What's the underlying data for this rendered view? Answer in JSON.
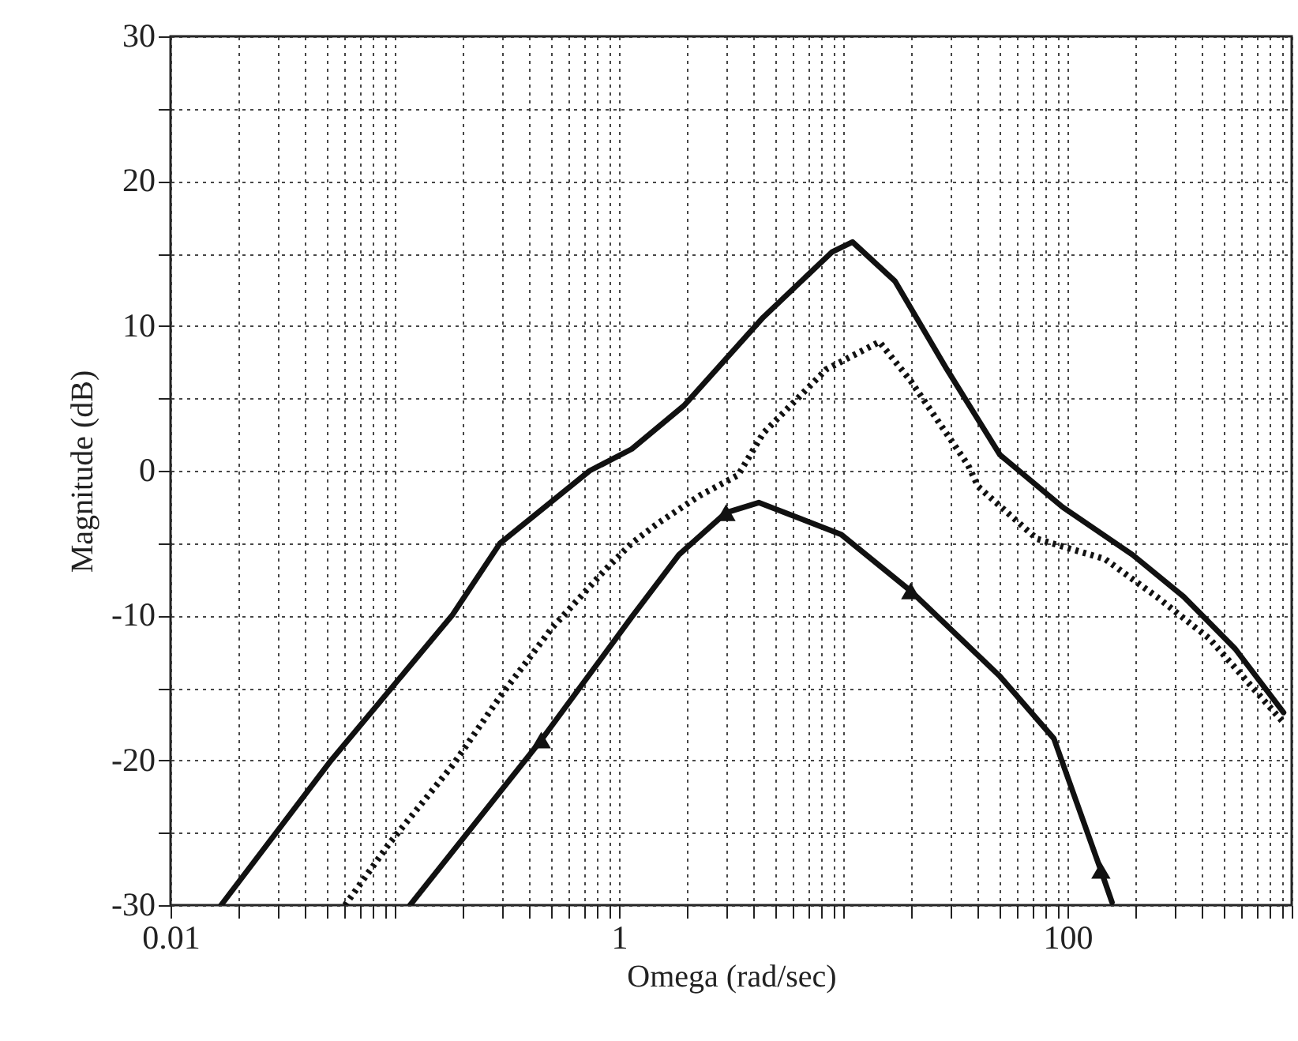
{
  "chart_data": {
    "type": "line",
    "xlabel": "Omega (rad/sec)",
    "ylabel": "Magnitude (dB)",
    "log": "x",
    "grid": true,
    "xlim": [
      0.01,
      1000
    ],
    "ylim": [
      -30,
      30
    ],
    "xticks": [
      0.01,
      {
        "value": 0.02,
        "label": null
      },
      {
        "value": 0.03,
        "label": null
      },
      {
        "value": 0.04,
        "label": null
      },
      {
        "value": 0.05,
        "label": null
      },
      {
        "value": 0.06,
        "label": null
      },
      {
        "value": 0.07,
        "label": null
      },
      {
        "value": 0.08,
        "label": null
      },
      {
        "value": 0.09,
        "label": null
      },
      {
        "value": 0.1,
        "label": null
      },
      {
        "value": 0.2,
        "label": null
      },
      {
        "value": 0.3,
        "label": null
      },
      {
        "value": 0.4,
        "label": null
      },
      {
        "value": 0.5,
        "label": null
      },
      {
        "value": 0.6,
        "label": null
      },
      {
        "value": 0.7,
        "label": null
      },
      {
        "value": 0.8,
        "label": null
      },
      {
        "value": 0.9,
        "label": null
      },
      1,
      {
        "value": 2,
        "label": null
      },
      {
        "value": 3,
        "label": null
      },
      {
        "value": 4,
        "label": null
      },
      {
        "value": 5,
        "label": null
      },
      {
        "value": 6,
        "label": null
      },
      {
        "value": 7,
        "label": null
      },
      {
        "value": 8,
        "label": null
      },
      {
        "value": 9,
        "label": null
      },
      {
        "value": 10,
        "label": null
      },
      {
        "value": 20,
        "label": null
      },
      {
        "value": 30,
        "label": null
      },
      {
        "value": 40,
        "label": null
      },
      {
        "value": 50,
        "label": null
      },
      {
        "value": 60,
        "label": null
      },
      {
        "value": 70,
        "label": null
      },
      {
        "value": 80,
        "label": null
      },
      {
        "value": 90,
        "label": null
      },
      100,
      {
        "value": 200,
        "label": null
      },
      {
        "value": 300,
        "label": null
      },
      {
        "value": 400,
        "label": null
      },
      {
        "value": 500,
        "label": null
      },
      {
        "value": 600,
        "label": null
      },
      {
        "value": 700,
        "label": null
      },
      {
        "value": 800,
        "label": null
      },
      {
        "value": 900,
        "label": null
      },
      {
        "value": 1000,
        "label": null
      }
    ],
    "yticks": [
      -30,
      {
        "value": -25,
        "label": null
      },
      -20,
      {
        "value": -15,
        "label": null
      },
      -10,
      {
        "value": -5,
        "label": null
      },
      0,
      {
        "value": 5,
        "label": null
      },
      10,
      {
        "value": 15,
        "label": null
      },
      20,
      {
        "value": 25,
        "label": null
      },
      30
    ],
    "series": [
      {
        "color": "#111111",
        "line_style": "solid",
        "x": [
          0.0168,
          0.052,
          0.18,
          0.295,
          0.74,
          1.14,
          1.95,
          4.4,
          8.9,
          11,
          17,
          29,
          50,
          95,
          195,
          330,
          560,
          920
        ],
        "values": [
          -30,
          -20,
          -10,
          -5,
          0,
          1.5,
          4.5,
          10.6,
          15.1,
          15.8,
          13.1,
          7,
          1.1,
          -2.5,
          -5.8,
          -8.7,
          -12.3,
          -16.7
        ]
      },
      {
        "color": "#111111",
        "line_style": "dotted",
        "x": [
          0.06,
          0.095,
          0.182,
          0.295,
          0.5,
          0.86,
          1.14,
          1.5,
          2.3,
          3.4,
          4.4,
          8.4,
          14.5,
          20,
          36,
          40,
          73,
          147,
          250,
          430,
          920
        ],
        "values": [
          -30,
          -25.7,
          -20.3,
          -15.6,
          -10.9,
          -6.9,
          -5,
          -3.6,
          -1.7,
          -0.3,
          2.6,
          7,
          8.9,
          6.2,
          0.4,
          -1.1,
          -4.7,
          -6.1,
          -8.7,
          -11.6,
          -17.4
        ]
      },
      {
        "color": "#111111",
        "line_style": "solid",
        "x": [
          0.117,
          0.45,
          1.14,
          1.85,
          3.0,
          4.2,
          9.8,
          20,
          50,
          87,
          141,
          158
        ],
        "values": [
          -30,
          -18.6,
          -10.1,
          -5.8,
          -2.9,
          -2.2,
          -4.4,
          -8.3,
          -14.2,
          -18.5,
          -27.6,
          -29.8
        ]
      },
      {
        "type": "scatter",
        "marker": "triangle",
        "color": "#111111",
        "x": [
          0.45,
          3.0,
          20,
          141
        ],
        "values": [
          -18.6,
          -2.9,
          -8.3,
          -27.6
        ]
      }
    ]
  }
}
